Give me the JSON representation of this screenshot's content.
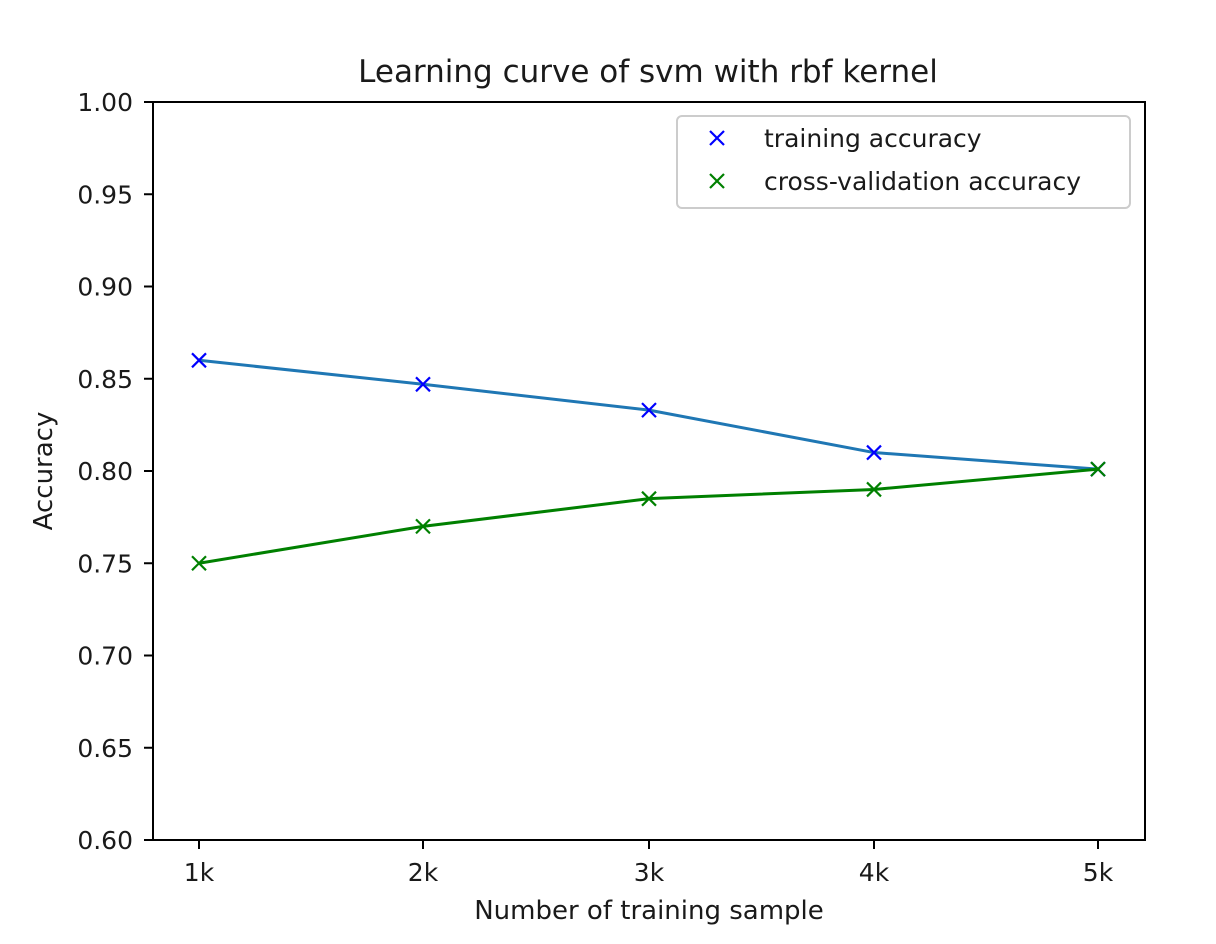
{
  "chart_data": {
    "type": "line",
    "title": "Learning curve of svm with rbf kernel",
    "xlabel": "Number of training sample",
    "ylabel": "Accuracy",
    "categories": [
      "1k",
      "2k",
      "3k",
      "4k",
      "5k"
    ],
    "ylim": [
      0.6,
      1.0
    ],
    "yticks": [
      "0.60",
      "0.65",
      "0.70",
      "0.75",
      "0.80",
      "0.85",
      "0.90",
      "0.95",
      "1.00"
    ],
    "grid": false,
    "legend_position": "top-right",
    "series": [
      {
        "name": "training accuracy",
        "values": [
          0.86,
          0.847,
          0.833,
          0.81,
          0.801
        ],
        "line_color": "#1f77b4",
        "marker_color": "#0000ff",
        "marker": "x"
      },
      {
        "name": "cross-validation accuracy",
        "values": [
          0.75,
          0.77,
          0.785,
          0.79,
          0.801
        ],
        "line_color": "#008000",
        "marker_color": "#008000",
        "marker": "x"
      }
    ]
  }
}
